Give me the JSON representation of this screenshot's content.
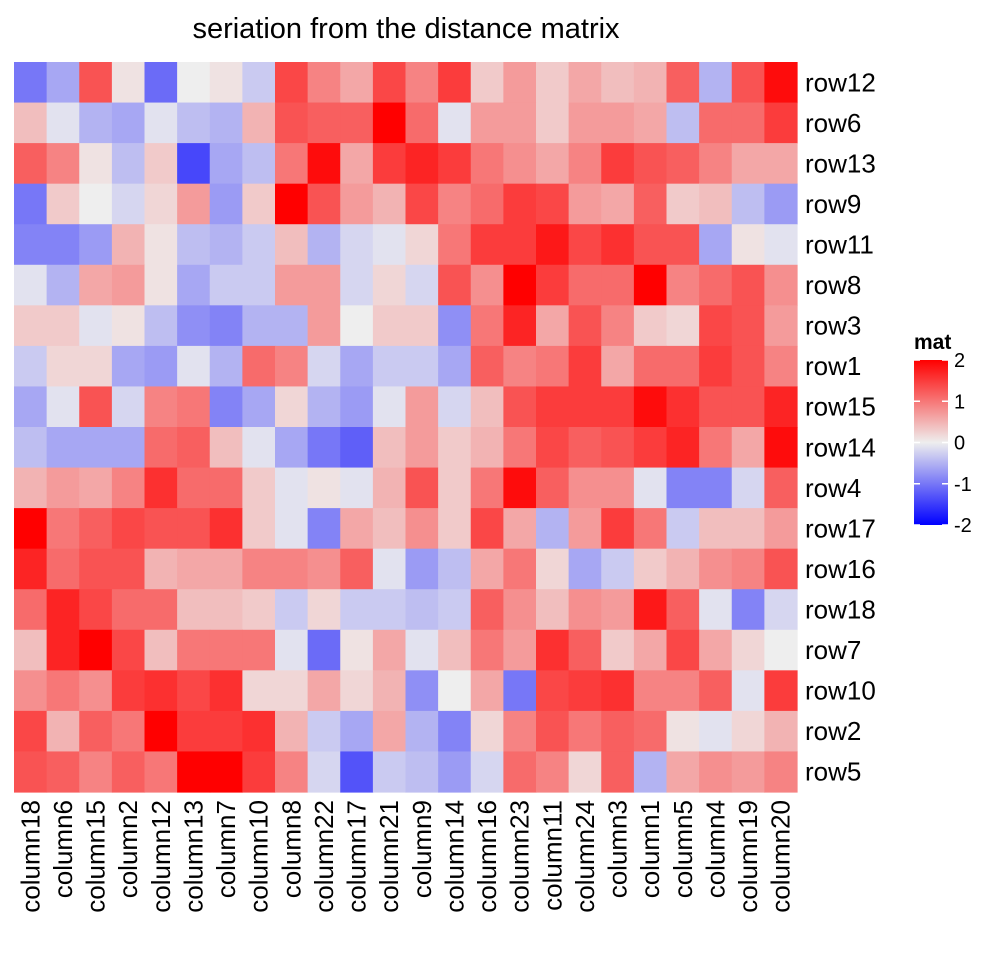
{
  "chart_data": {
    "type": "heatmap",
    "title": "seriation from the distance matrix",
    "rows": [
      "row12",
      "row6",
      "row13",
      "row9",
      "row11",
      "row8",
      "row3",
      "row1",
      "row15",
      "row14",
      "row4",
      "row17",
      "row16",
      "row18",
      "row7",
      "row10",
      "row2",
      "row5"
    ],
    "columns": [
      "column18",
      "column6",
      "column15",
      "column2",
      "column12",
      "column13",
      "column7",
      "column10",
      "column8",
      "column22",
      "column17",
      "column21",
      "column9",
      "column14",
      "column16",
      "column23",
      "column11",
      "column24",
      "column3",
      "column1",
      "column5",
      "column4",
      "column19",
      "column20"
    ],
    "values": [
      [
        -1.0,
        -0.6,
        1.3,
        0.1,
        -1.1,
        0.0,
        0.1,
        -0.3,
        1.4,
        0.9,
        0.6,
        1.4,
        0.9,
        1.5,
        0.3,
        0.7,
        0.3,
        0.6,
        0.4,
        0.5,
        1.2,
        -0.5,
        1.3,
        1.9
      ],
      [
        0.4,
        -0.1,
        -0.5,
        -0.6,
        -0.1,
        -0.4,
        -0.5,
        0.5,
        1.3,
        1.2,
        1.2,
        2.0,
        1.1,
        -0.1,
        0.7,
        0.7,
        0.3,
        0.7,
        0.7,
        0.6,
        -0.4,
        1.1,
        1.1,
        1.5
      ],
      [
        1.2,
        0.9,
        0.1,
        -0.4,
        0.3,
        -1.4,
        -0.6,
        -0.4,
        1.0,
        1.9,
        0.6,
        1.5,
        1.7,
        1.5,
        1.0,
        0.8,
        0.6,
        0.9,
        1.5,
        1.3,
        1.2,
        0.9,
        0.6,
        0.6
      ],
      [
        -1.0,
        0.3,
        0.0,
        -0.2,
        0.2,
        0.7,
        -0.7,
        0.3,
        2.0,
        1.3,
        0.7,
        0.5,
        1.4,
        0.9,
        1.1,
        1.5,
        1.4,
        0.7,
        0.6,
        1.2,
        0.3,
        0.4,
        -0.4,
        -0.7
      ],
      [
        -0.9,
        -0.9,
        -0.7,
        0.5,
        0.1,
        -0.4,
        -0.5,
        -0.3,
        0.4,
        -0.5,
        -0.2,
        -0.1,
        0.2,
        1.0,
        1.5,
        1.5,
        1.8,
        1.4,
        1.6,
        1.3,
        1.3,
        -0.6,
        0.1,
        -0.1
      ],
      [
        -0.1,
        -0.5,
        0.6,
        0.7,
        0.1,
        -0.6,
        -0.3,
        -0.3,
        0.7,
        0.7,
        -0.2,
        0.2,
        -0.2,
        1.3,
        0.8,
        2.0,
        1.5,
        1.1,
        1.1,
        2.1,
        0.9,
        1.1,
        1.3,
        0.8
      ],
      [
        0.3,
        0.3,
        -0.1,
        0.1,
        -0.4,
        -0.8,
        -0.9,
        -0.5,
        -0.5,
        0.7,
        0.0,
        0.3,
        0.3,
        -0.8,
        1.0,
        1.7,
        0.6,
        1.3,
        0.9,
        0.3,
        0.2,
        1.4,
        1.3,
        0.7
      ],
      [
        -0.3,
        0.2,
        0.2,
        -0.6,
        -0.7,
        -0.1,
        -0.5,
        1.1,
        0.9,
        -0.2,
        -0.6,
        -0.3,
        -0.3,
        -0.6,
        1.2,
        0.9,
        1.0,
        1.5,
        0.6,
        1.1,
        1.1,
        1.5,
        1.3,
        0.9
      ],
      [
        -0.6,
        -0.1,
        1.3,
        -0.2,
        0.9,
        1.0,
        -0.9,
        -0.6,
        0.2,
        -0.5,
        -0.7,
        -0.1,
        0.7,
        -0.2,
        0.4,
        1.3,
        1.5,
        1.5,
        1.5,
        1.9,
        1.6,
        1.3,
        1.3,
        1.7
      ],
      [
        -0.4,
        -0.6,
        -0.6,
        -0.6,
        1.1,
        1.2,
        0.4,
        -0.1,
        -0.6,
        -1.0,
        -1.2,
        0.4,
        0.7,
        0.3,
        0.5,
        1.0,
        1.4,
        1.2,
        1.3,
        1.5,
        1.7,
        1.0,
        0.6,
        1.9
      ],
      [
        0.5,
        0.7,
        0.6,
        0.9,
        1.6,
        1.1,
        1.1,
        0.3,
        -0.1,
        0.1,
        -0.1,
        0.5,
        1.3,
        0.3,
        1.0,
        1.9,
        1.2,
        0.8,
        0.8,
        -0.1,
        -0.9,
        -0.9,
        -0.2,
        1.2
      ],
      [
        2.1,
        1.0,
        1.2,
        1.4,
        1.3,
        1.3,
        1.6,
        0.3,
        -0.1,
        -0.9,
        0.6,
        0.4,
        0.8,
        0.3,
        1.4,
        0.6,
        -0.5,
        0.7,
        1.5,
        1.0,
        -0.3,
        0.4,
        0.4,
        0.7
      ],
      [
        1.7,
        1.1,
        1.3,
        1.3,
        0.5,
        0.6,
        0.6,
        0.9,
        0.9,
        0.8,
        1.2,
        -0.1,
        -0.7,
        -0.4,
        0.6,
        1.0,
        0.2,
        -0.6,
        -0.3,
        0.3,
        0.5,
        0.8,
        0.9,
        1.3
      ],
      [
        1.1,
        1.7,
        1.4,
        1.1,
        1.1,
        0.4,
        0.4,
        0.3,
        -0.3,
        0.2,
        -0.3,
        -0.3,
        -0.4,
        -0.3,
        1.2,
        0.8,
        0.4,
        0.8,
        0.7,
        1.8,
        1.2,
        -0.1,
        -0.9,
        -0.2
      ],
      [
        0.4,
        1.7,
        2.1,
        1.4,
        0.4,
        1.0,
        1.0,
        1.0,
        -0.1,
        -1.1,
        0.1,
        0.6,
        -0.1,
        0.4,
        1.0,
        0.7,
        1.6,
        1.2,
        0.3,
        0.6,
        1.4,
        0.6,
        0.2,
        0.0
      ],
      [
        0.8,
        1.0,
        0.8,
        1.5,
        1.6,
        1.4,
        1.6,
        0.2,
        0.2,
        0.6,
        0.2,
        0.5,
        -0.8,
        0.0,
        0.6,
        -1.0,
        1.4,
        1.5,
        1.6,
        0.9,
        0.9,
        1.2,
        -0.1,
        1.5
      ],
      [
        1.4,
        0.5,
        1.2,
        1.0,
        2.1,
        1.5,
        1.5,
        1.6,
        0.5,
        -0.3,
        -0.6,
        0.6,
        -0.5,
        -0.9,
        0.2,
        0.9,
        1.3,
        1.0,
        1.2,
        1.1,
        0.1,
        -0.1,
        0.2,
        0.5
      ],
      [
        1.3,
        1.2,
        0.9,
        1.2,
        1.0,
        2.1,
        2.1,
        1.5,
        0.9,
        -0.2,
        -1.3,
        -0.3,
        -0.4,
        -0.7,
        -0.2,
        1.1,
        0.9,
        0.2,
        1.2,
        -0.5,
        0.6,
        0.8,
        0.7,
        0.9
      ]
    ],
    "legend": {
      "title": "mat",
      "ticks": [
        2,
        1,
        0,
        -1,
        -2
      ],
      "tick_labels": [
        "2",
        "1",
        "0",
        "-1",
        "-2"
      ],
      "colors": {
        "low": "#0000ff",
        "mid": "#eeeeee",
        "high": "#ff0000"
      },
      "placement": "right"
    },
    "grid": false
  }
}
